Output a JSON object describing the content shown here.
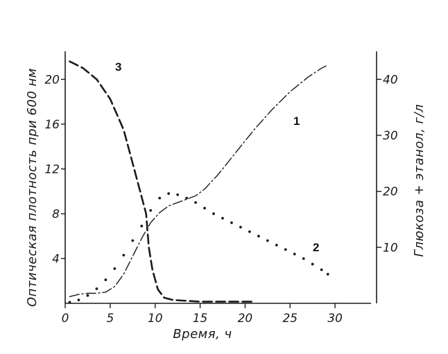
{
  "chart_data": {
    "type": "line",
    "xlabel": "Время, ч",
    "ylabel_left": "Оптическая плотность при 600 нм",
    "ylabel_right": "Глюкоза + этанол, г/л",
    "x_ticks": [
      0,
      5,
      10,
      15,
      20,
      25,
      30
    ],
    "x_tick_labels": [
      "0",
      "5",
      "10",
      "15",
      "20",
      "25",
      "30"
    ],
    "xlim": [
      0,
      34
    ],
    "y_left_ticks": [
      4,
      8,
      12,
      16,
      20
    ],
    "y_left_tick_labels": [
      "4",
      "8",
      "12",
      "16",
      "20"
    ],
    "ylim_left": [
      0,
      22.5
    ],
    "y_right_ticks": [
      10,
      20,
      30,
      40
    ],
    "y_right_tick_labels": [
      "10",
      "20",
      "30",
      "40"
    ],
    "ylim_right": [
      0,
      45
    ],
    "grid": false,
    "series": [
      {
        "name": "1",
        "axis": "left",
        "style": "dash-dot",
        "x": [
          0.5,
          1.5,
          2.5,
          3.5,
          4.5,
          5.5,
          6.5,
          7.5,
          8.5,
          9.5,
          10.5,
          11.5,
          12.5,
          13.5,
          14.5,
          15.5,
          17,
          19,
          21,
          23,
          25,
          27,
          28.5,
          29
        ],
        "y": [
          0.6,
          0.8,
          0.9,
          0.9,
          1.0,
          1.5,
          2.6,
          4.2,
          5.8,
          7.2,
          8.1,
          8.7,
          9.0,
          9.3,
          9.6,
          10.2,
          11.5,
          13.5,
          15.5,
          17.3,
          18.9,
          20.2,
          21.0,
          21.2
        ]
      },
      {
        "name": "2",
        "axis": "left",
        "style": "dotted",
        "x": [
          0.5,
          1.5,
          2.5,
          3.5,
          4.5,
          5.5,
          6.5,
          7.5,
          8.5,
          9.5,
          10.5,
          11.5,
          12.5,
          13.5,
          14.5,
          15.5,
          16.5,
          17.5,
          18.5,
          19.5,
          20.5,
          21.5,
          22.5,
          23.5,
          24.5,
          25.5,
          26.5,
          27.5,
          28.5,
          29.2
        ],
        "y": [
          0.1,
          0.3,
          0.7,
          1.3,
          2.1,
          3.1,
          4.3,
          5.6,
          6.9,
          8.3,
          9.4,
          9.8,
          9.7,
          9.4,
          9.0,
          8.5,
          8.0,
          7.6,
          7.2,
          6.8,
          6.4,
          6.0,
          5.6,
          5.2,
          4.8,
          4.4,
          4.0,
          3.5,
          3.0,
          2.6
        ]
      },
      {
        "name": "3",
        "axis": "right",
        "style": "dashed",
        "x": [
          0.5,
          2,
          3.5,
          5,
          6.5,
          8,
          9,
          9.3,
          9.7,
          10.3,
          11,
          12,
          13,
          15,
          17,
          19,
          21
        ],
        "y": [
          43.2,
          42.0,
          40.0,
          36.5,
          31.0,
          22.0,
          16.0,
          10.0,
          6.0,
          2.5,
          1.0,
          0.6,
          0.5,
          0.3,
          0.3,
          0.3,
          0.3
        ]
      }
    ]
  }
}
